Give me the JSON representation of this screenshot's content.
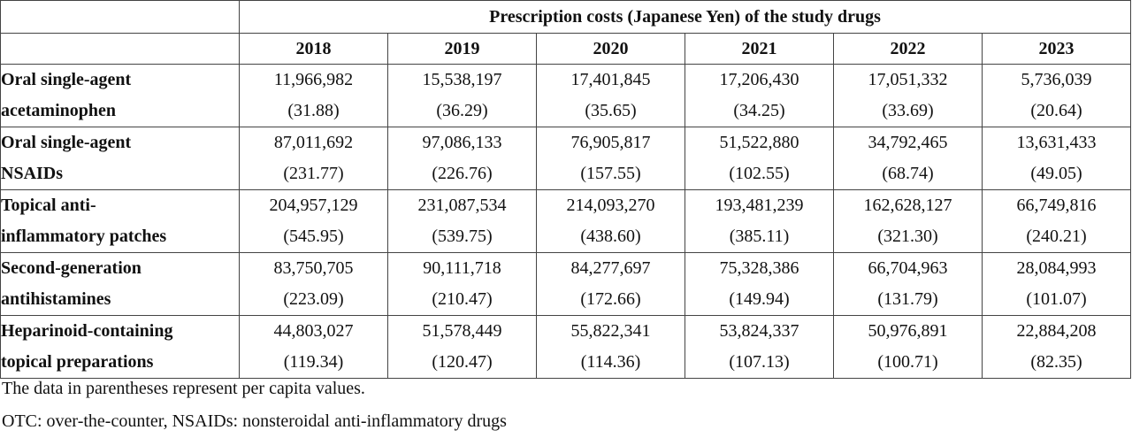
{
  "table": {
    "caption": "Prescription costs (Japanese Yen) of the study drugs",
    "years": [
      "2018",
      "2019",
      "2020",
      "2021",
      "2022",
      "2023"
    ],
    "rows": [
      {
        "name_line1": "Oral single-agent",
        "name_line2": "acetaminophen",
        "totals": [
          "11,966,982",
          "15,538,197",
          "17,401,845",
          "17,206,430",
          "17,051,332",
          "5,736,039"
        ],
        "per_capita": [
          "(31.88)",
          "(36.29)",
          "(35.65)",
          "(34.25)",
          "(33.69)",
          "(20.64)"
        ]
      },
      {
        "name_line1": "Oral single-agent",
        "name_line2": "NSAIDs",
        "totals": [
          "87,011,692",
          "97,086,133",
          "76,905,817",
          "51,522,880",
          "34,792,465",
          "13,631,433"
        ],
        "per_capita": [
          "(231.77)",
          "(226.76)",
          "(157.55)",
          "(102.55)",
          "(68.74)",
          "(49.05)"
        ]
      },
      {
        "name_line1": "Topical anti-",
        "name_line2": "inflammatory patches",
        "totals": [
          "204,957,129",
          "231,087,534",
          "214,093,270",
          "193,481,239",
          "162,628,127",
          "66,749,816"
        ],
        "per_capita": [
          "(545.95)",
          "(539.75)",
          "(438.60)",
          "(385.11)",
          "(321.30)",
          "(240.21)"
        ]
      },
      {
        "name_line1": "Second-generation",
        "name_line2": "antihistamines",
        "totals": [
          "83,750,705",
          "90,111,718",
          "84,277,697",
          "75,328,386",
          "66,704,963",
          "28,084,993"
        ],
        "per_capita": [
          "(223.09)",
          "(210.47)",
          "(172.66)",
          "(149.94)",
          "(131.79)",
          "(101.07)"
        ]
      },
      {
        "name_line1": "Heparinoid-containing",
        "name_line2": "topical preparations",
        "totals": [
          "44,803,027",
          "51,578,449",
          "55,822,341",
          "53,824,337",
          "50,976,891",
          "22,884,208"
        ],
        "per_capita": [
          "(119.34)",
          "(120.47)",
          "(114.36)",
          "(107.13)",
          "(100.71)",
          "(82.35)"
        ]
      }
    ]
  },
  "footnotes": {
    "note1": "The data in parentheses represent per capita values.",
    "note2": "OTC: over-the-counter, NSAIDs: nonsteroidal anti-inflammatory drugs"
  }
}
